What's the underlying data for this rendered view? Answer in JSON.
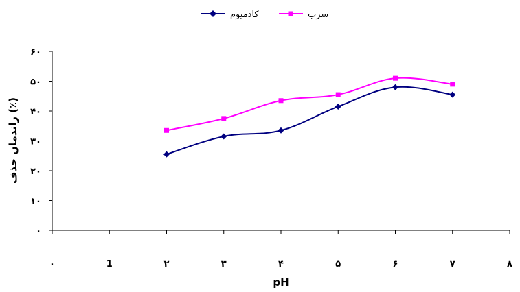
{
  "chart_data": {
    "type": "line",
    "xlabel": "pH",
    "ylabel": "راندمان حذف (٪)",
    "xlim": [
      0,
      8
    ],
    "ylim": [
      0,
      60
    ],
    "x_tick_labels": [
      "٠",
      "1",
      "٢",
      "٣",
      "۴",
      "۵",
      "۶",
      "٧",
      "٨"
    ],
    "y_tick_labels": [
      "٠",
      "١٠",
      "٢٠",
      "٣٠",
      "۴٠",
      "۵٠",
      "۶٠"
    ],
    "grid": false,
    "legend_position": "top",
    "series": [
      {
        "name": "کادمیوم",
        "color": "#000080",
        "marker": "diamond",
        "x": [
          2,
          3,
          4,
          5,
          6,
          7
        ],
        "y": [
          25.5,
          31.5,
          33.5,
          41.5,
          48,
          45.5
        ]
      },
      {
        "name": "سرب",
        "color": "#ff00ff",
        "marker": "square",
        "x": [
          2,
          3,
          4,
          5,
          6,
          7
        ],
        "y": [
          33.5,
          37.5,
          43.5,
          45.5,
          51,
          49
        ]
      }
    ]
  }
}
